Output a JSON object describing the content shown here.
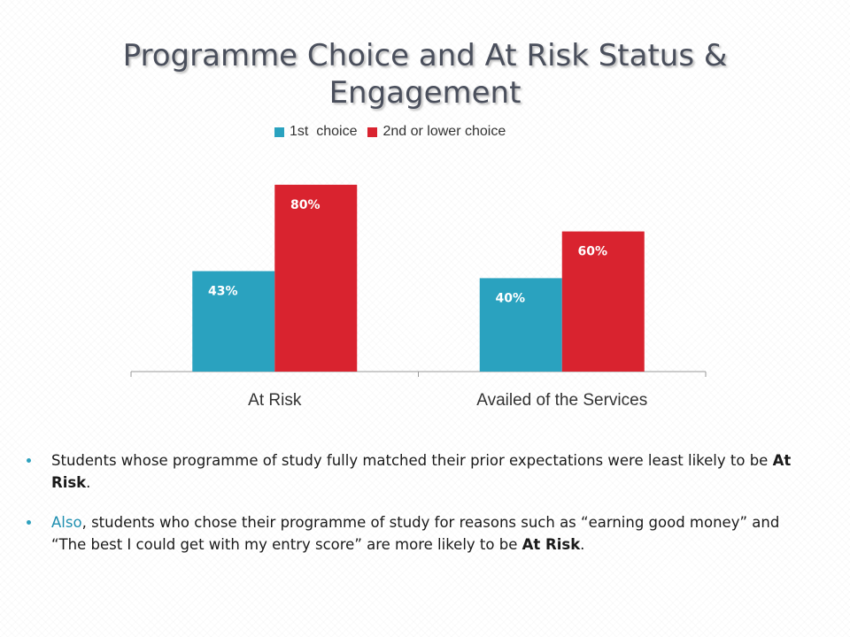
{
  "slide": {
    "title": "Programme Choice and At Risk Status & Engagement"
  },
  "colors": {
    "series_1": "#2aa2bf",
    "series_2": "#d9232f",
    "axis": "#9a9a9a",
    "bullet": "#2ea1be",
    "accent_text": "#1f8fb0"
  },
  "chart_data": {
    "type": "bar",
    "categories": [
      "At Risk",
      "Availed of the Services"
    ],
    "series": [
      {
        "name": "1st  choice",
        "values": [
          43,
          40
        ],
        "labels": [
          "43%",
          "40%"
        ]
      },
      {
        "name": "2nd or lower choice",
        "values": [
          80,
          60
        ],
        "labels": [
          "80%",
          "60%"
        ]
      }
    ],
    "ylim": [
      0,
      100
    ],
    "legend": "top",
    "grid": false,
    "xlabel": "",
    "ylabel": ""
  },
  "bullets": {
    "b1_text": "Students whose programme of study fully matched their prior expectations were least likely to be ",
    "b1_bold": "At Risk",
    "b1_end": ".",
    "b2_lead": "Also",
    "b2_text": ", students who chose their programme of study for reasons such as “earning good money” and “The best I could get with my entry score” are more likely to be ",
    "b2_bold": "At Risk",
    "b2_end": "."
  }
}
